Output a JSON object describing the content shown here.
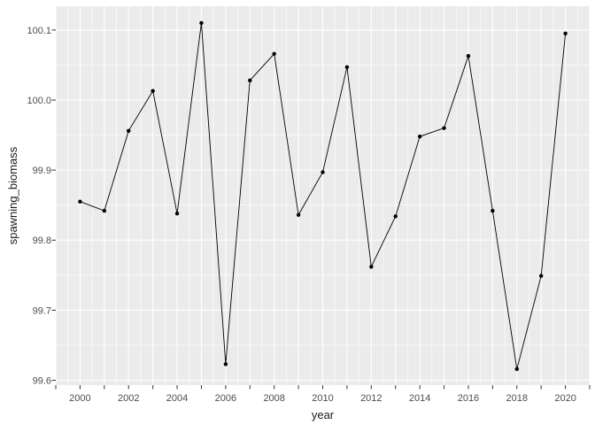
{
  "chart_data": {
    "type": "line",
    "title": "",
    "xlabel": "year",
    "ylabel": "spawning_biomass",
    "x": [
      2000,
      2001,
      2002,
      2003,
      2004,
      2005,
      2006,
      2007,
      2008,
      2009,
      2010,
      2011,
      2012,
      2013,
      2014,
      2015,
      2016,
      2017,
      2018,
      2019,
      2020
    ],
    "series": [
      {
        "name": "spawning_biomass",
        "values": [
          99.855,
          99.842,
          99.956,
          100.013,
          99.838,
          100.11,
          99.623,
          100.028,
          100.066,
          99.836,
          99.897,
          100.047,
          99.762,
          99.834,
          99.948,
          99.96,
          100.063,
          99.842,
          99.616,
          99.749,
          100.095
        ]
      }
    ],
    "xlim": [
      1999,
      2021
    ],
    "ylim": [
      99.593,
      100.134
    ],
    "x_axis": {
      "tick_values": [
        1999,
        2000,
        2001,
        2002,
        2003,
        2004,
        2005,
        2006,
        2007,
        2008,
        2009,
        2010,
        2011,
        2012,
        2013,
        2014,
        2015,
        2016,
        2017,
        2018,
        2019,
        2020,
        2021
      ],
      "label_values": [
        2000,
        2002,
        2004,
        2006,
        2008,
        2010,
        2012,
        2014,
        2016,
        2018,
        2020
      ],
      "labels": [
        "2000",
        "2002",
        "2004",
        "2006",
        "2008",
        "2010",
        "2012",
        "2014",
        "2016",
        "2018",
        "2020"
      ],
      "minor_values": [
        1999.5,
        2000.5,
        2001.5,
        2002.5,
        2003.5,
        2004.5,
        2005.5,
        2006.5,
        2007.5,
        2008.5,
        2009.5,
        2010.5,
        2011.5,
        2012.5,
        2013.5,
        2014.5,
        2015.5,
        2016.5,
        2017.5,
        2018.5,
        2019.5,
        2020.5
      ]
    },
    "y_axis": {
      "tick_values": [
        99.6,
        99.7,
        99.8,
        99.9,
        100.0,
        100.1
      ],
      "labels": [
        "99.6",
        "99.7",
        "99.8",
        "99.9",
        "100.0",
        "100.1"
      ],
      "minor_values": [
        99.65,
        99.75,
        99.85,
        99.95,
        100.05
      ]
    },
    "grid": true,
    "legend": "none",
    "style": {
      "panel_bg": "#EBEBEB",
      "grid_color": "#FFFFFF",
      "tick_mark_color": "#333333",
      "tick_label_color": "#4D4D4D",
      "axis_title_color": "#1A1A1A",
      "line_color": "#000000",
      "point_color": "#000000"
    }
  }
}
